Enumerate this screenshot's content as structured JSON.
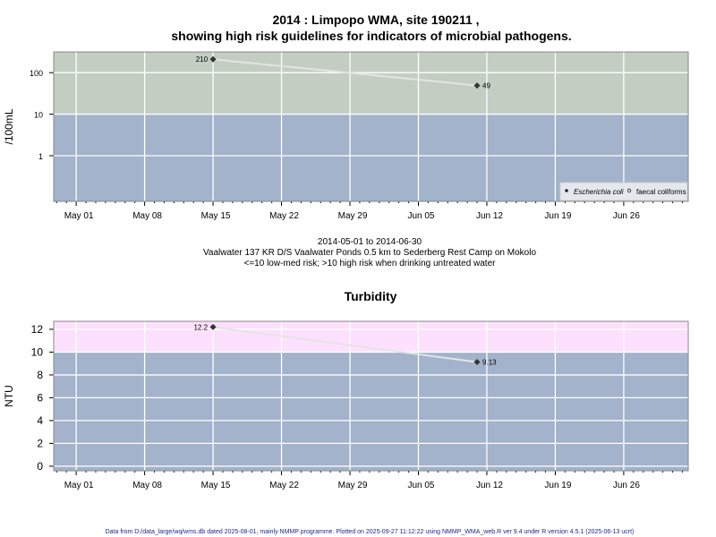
{
  "title_line1": "2014 : Limpopo WMA, site 190211 ,",
  "title_line2": "showing high risk guidelines for indicators of microbial pathogens.",
  "subtitle": [
    "2014-05-01 to 2014-06-30",
    "Vaalwater 137 KR D/S Vaalwater Ponds 0.5 km to Sederberg Rest Camp on Mokolo",
    "<=10 low-med risk; >10 high risk when drinking untreated water"
  ],
  "footer": "Data from D:/data_large/wq/wms.db dated 2025-08-01, mainly NMMP programme. Plotted on 2025-09-27 11:12:22 using NMMP_WMA_web.R ver 9.4 under R version 4.5.1 (2025-06-13 ucrt)",
  "chart_data": [
    {
      "type": "line",
      "title": "",
      "ylabel": "/100mL",
      "yscale": "log",
      "ylim_log10": [
        -1.1,
        2.5
      ],
      "yticks": [
        {
          "v": 1,
          "label": "1"
        },
        {
          "v": 10,
          "label": "10"
        },
        {
          "v": 100,
          "label": "100"
        }
      ],
      "x_tick_labels": [
        "May 01",
        "May 08",
        "May 15",
        "May 22",
        "May 29",
        "Jun 05",
        "Jun 12",
        "Jun 19",
        "Jun 26"
      ],
      "x_tick_days": [
        0,
        7,
        14,
        21,
        28,
        35,
        42,
        49,
        56
      ],
      "xlim_days": [
        -2.3,
        62.6
      ],
      "bands": [
        {
          "from": 10,
          "to": 1000,
          "color": "#c3cdc2",
          "label": "high risk"
        },
        {
          "from": 0.01,
          "to": 10,
          "color": "#a2b3cb",
          "label": "low-med risk"
        }
      ],
      "series": [
        {
          "name": "Escherichia coli",
          "x_days": [
            14,
            41
          ],
          "values": [
            210,
            49
          ],
          "labels": [
            "210",
            "49"
          ]
        }
      ],
      "legend": {
        "placement": "bottom-right",
        "entries": [
          "Escherichia coli",
          "faecal coliforms"
        ]
      }
    },
    {
      "type": "line",
      "title": "Turbidity",
      "ylabel": "NTU",
      "ylim": [
        -0.4,
        12.7
      ],
      "yticks": [
        {
          "v": 0,
          "label": "0"
        },
        {
          "v": 2,
          "label": "2"
        },
        {
          "v": 4,
          "label": "4"
        },
        {
          "v": 6,
          "label": "6"
        },
        {
          "v": 8,
          "label": "8"
        },
        {
          "v": 10,
          "label": "10"
        },
        {
          "v": 12,
          "label": "12"
        }
      ],
      "x_tick_labels": [
        "May 01",
        "May 08",
        "May 15",
        "May 22",
        "May 29",
        "Jun 05",
        "Jun 12",
        "Jun 19",
        "Jun 26"
      ],
      "x_tick_days": [
        0,
        7,
        14,
        21,
        28,
        35,
        42,
        49,
        56
      ],
      "xlim_days": [
        -2.3,
        62.6
      ],
      "bands": [
        {
          "from": 10,
          "to": 100,
          "color": "#fde0fd"
        },
        {
          "from": -10,
          "to": 10,
          "color": "#a2b3cb"
        }
      ],
      "series": [
        {
          "name": "Turbidity",
          "x_days": [
            14,
            41
          ],
          "values": [
            12.2,
            9.13
          ],
          "labels": [
            "12.2",
            "9.13"
          ]
        }
      ]
    }
  ]
}
